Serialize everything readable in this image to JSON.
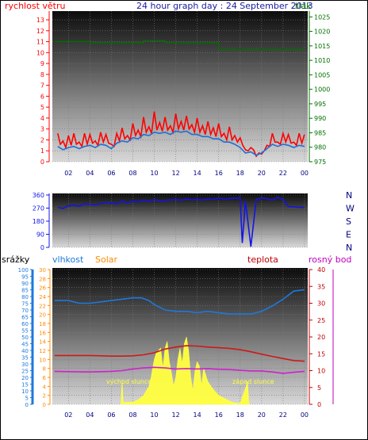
{
  "colors": {
    "wind": "#ff0000",
    "gust_line": "#1e6fd8",
    "pressure": "#007000",
    "direction": "#1414e6",
    "humidity": "#1e78dc",
    "temperature": "#d01818",
    "dewpoint": "#d020d0",
    "solar": "#ffff40",
    "rain_axis": "#1e78dc",
    "solar_axis": "#ff8c00",
    "temp_axis": "#c00000",
    "dew_axis": "#c000c0"
  },
  "chart_data": [
    {
      "type": "line",
      "title": "24 hour graph day : 24 September 2013",
      "left_label": "rychlost větru",
      "right_label": "tlak",
      "x_ticks": [
        "02",
        "04",
        "06",
        "08",
        "10",
        "12",
        "14",
        "16",
        "18",
        "20",
        "22",
        "00"
      ],
      "left_ticks": [
        "0",
        "1",
        "2",
        "3",
        "4",
        "5",
        "6",
        "7",
        "8",
        "9",
        "10",
        "11",
        "12",
        "13"
      ],
      "right_ticks": [
        "975",
        "980",
        "985",
        "990",
        "995",
        "1000",
        "1005",
        "1010",
        "1015",
        "1020",
        "1025"
      ],
      "ylim_left": [
        0,
        13.8
      ],
      "ylim_right": [
        975,
        1027
      ],
      "xlim": [
        0.5,
        24.3
      ],
      "series": [
        {
          "key": "wind_gust",
          "x": [
            1,
            1.5,
            2,
            2.5,
            3,
            3.5,
            4,
            4.5,
            5,
            5.5,
            6,
            6.5,
            7,
            7.5,
            8,
            8.5,
            9,
            9.5,
            10,
            10.5,
            11,
            11.5,
            12,
            12.5,
            13,
            13.5,
            14,
            14.5,
            15,
            15.5,
            16,
            16.5,
            17,
            17.5,
            18,
            18.5,
            19,
            19.5,
            20,
            20.5,
            21,
            21.5,
            22,
            22.5,
            23,
            23.5,
            24
          ],
          "y": [
            2.6,
            1.9,
            2.4,
            2.6,
            1.8,
            2.6,
            2.5,
            1.9,
            2.7,
            2.5,
            1.6,
            2.6,
            3.1,
            2.4,
            3.5,
            2.9,
            4.1,
            3.2,
            4.6,
            3.6,
            4.1,
            3.3,
            4.4,
            3.7,
            4.2,
            3.4,
            4.0,
            3.3,
            3.7,
            3.1,
            3.5,
            2.6,
            3.2,
            2.4,
            2.2,
            1.1,
            1.3,
            0.5,
            0.7,
            1.5,
            2.6,
            1.8,
            2.6,
            2.5,
            1.8,
            2.6,
            2.5
          ]
        },
        {
          "key": "wind_speed",
          "x": [
            1,
            1.5,
            2,
            2.5,
            3,
            3.5,
            4,
            4.5,
            5,
            5.5,
            6,
            6.5,
            7,
            7.5,
            8,
            8.5,
            9,
            9.5,
            10,
            10.5,
            11,
            11.5,
            12,
            12.5,
            13,
            13.5,
            14,
            14.5,
            15,
            15.5,
            16,
            16.5,
            17,
            17.5,
            18,
            18.5,
            19,
            19.5,
            20,
            20.5,
            21,
            21.5,
            22,
            22.5,
            23,
            23.5,
            24
          ],
          "y": [
            1.4,
            1.1,
            1.3,
            1.4,
            1.2,
            1.4,
            1.5,
            1.3,
            1.6,
            1.5,
            1.2,
            1.7,
            1.9,
            1.8,
            2.2,
            2.1,
            2.5,
            2.4,
            2.7,
            2.6,
            2.7,
            2.5,
            2.8,
            2.7,
            2.8,
            2.5,
            2.5,
            2.3,
            2.3,
            2.1,
            2.1,
            1.8,
            1.8,
            1.6,
            1.3,
            0.8,
            0.9,
            0.6,
            0.8,
            1.2,
            1.6,
            1.4,
            1.6,
            1.5,
            1.3,
            1.5,
            1.4
          ]
        },
        {
          "key": "pressure",
          "x": [
            0.7,
            4.0,
            4.0,
            9.0,
            9.0,
            11.0,
            11.0,
            16.0,
            16.0,
            24.0
          ],
          "y": [
            1016.5,
            1016.5,
            1016.0,
            1016.0,
            1016.8,
            1016.8,
            1016.0,
            1016.0,
            1013.7,
            1013.7
          ]
        }
      ]
    },
    {
      "type": "scatter",
      "right_labels": [
        "N",
        "W",
        "S",
        "E",
        "N"
      ],
      "left_ticks": [
        "0",
        "90",
        "180",
        "270",
        "360"
      ],
      "ylim": [
        0,
        360
      ],
      "x": [
        1,
        1.5,
        2,
        2.5,
        3,
        3.5,
        4,
        4.5,
        5,
        5.5,
        6,
        6.5,
        7,
        7.5,
        8,
        8.5,
        9,
        9.5,
        10,
        10.5,
        11,
        11.5,
        12,
        12.5,
        13,
        13.5,
        14,
        14.5,
        15,
        15.5,
        16,
        16.5,
        17,
        17.5,
        18,
        18.2,
        18.5,
        19,
        19.5,
        20,
        20.5,
        21,
        21.5,
        22,
        22.5,
        23,
        23.5,
        24
      ],
      "y": [
        275,
        268,
        285,
        290,
        282,
        300,
        295,
        292,
        300,
        310,
        305,
        300,
        318,
        305,
        320,
        312,
        325,
        318,
        328,
        320,
        322,
        326,
        330,
        324,
        332,
        328,
        330,
        326,
        334,
        330,
        338,
        332,
        335,
        340,
        338,
        30,
        320,
        5,
        330,
        340,
        335,
        325,
        345,
        330,
        280,
        278,
        276,
        275
      ]
    },
    {
      "type": "line",
      "labels": {
        "rain": "srážky",
        "humidity": "vlhkost",
        "solar": "Solar",
        "temperature": "teplota",
        "dewpoint": "rosný bod"
      },
      "x_ticks": [
        "02",
        "04",
        "06",
        "08",
        "10",
        "12",
        "14",
        "16",
        "18",
        "20",
        "22",
        "00"
      ],
      "rain_ticks": [
        "0",
        "5",
        "10",
        "15",
        "20",
        "25",
        "30",
        "35",
        "40",
        "45",
        "50",
        "55",
        "60",
        "65",
        "70",
        "75",
        "80",
        "85",
        "90",
        "95",
        "100"
      ],
      "solar_ticks": [
        "0",
        "2",
        "4",
        "6",
        "8",
        "10",
        "12",
        "14",
        "16",
        "18",
        "20",
        "22",
        "24",
        "26",
        "28",
        "30"
      ],
      "temp_ticks": [
        "0",
        "5",
        "10",
        "15",
        "20",
        "25",
        "30",
        "35",
        "40"
      ],
      "ylim_rain": [
        0,
        100
      ],
      "ylim_solar": [
        0,
        30
      ],
      "ylim_temp": [
        0,
        40
      ],
      "annotations": [
        "východ slunce",
        "západ slunce"
      ],
      "sunrise_hour": 7.0,
      "sunset_hour": 18.8,
      "series": [
        {
          "key": "humidity",
          "axis": "rain",
          "x": [
            0.7,
            1.5,
            2,
            3,
            4,
            5,
            6,
            7,
            8,
            8.8,
            9.5,
            10,
            11,
            12,
            13,
            14,
            15,
            16,
            17,
            18,
            19,
            20,
            21,
            22,
            23,
            24
          ],
          "y": [
            77,
            77,
            77,
            75,
            75,
            76,
            77,
            78,
            79,
            79,
            77,
            74,
            70,
            69,
            69,
            68,
            69,
            68,
            67,
            67,
            67,
            69,
            73,
            78,
            84,
            85
          ]
        },
        {
          "key": "temperature",
          "axis": "temp",
          "x": [
            0.7,
            2,
            4,
            6,
            7,
            8,
            9,
            10,
            11,
            12,
            13,
            14,
            15,
            16,
            17,
            18,
            19,
            20,
            21,
            22,
            23,
            24
          ],
          "y": [
            14.5,
            14.5,
            14.5,
            14.3,
            14.3,
            14.4,
            14.7,
            15.3,
            16.4,
            17.0,
            17.4,
            17.3,
            17.0,
            16.8,
            16.6,
            16.2,
            15.6,
            14.9,
            14.2,
            13.6,
            13.0,
            12.8
          ]
        },
        {
          "key": "dewpoint",
          "axis": "temp",
          "x": [
            0.7,
            2,
            4,
            6,
            7,
            8,
            9,
            10,
            11,
            12,
            13,
            14,
            15,
            16,
            17,
            18,
            19,
            20,
            21,
            22,
            23,
            24
          ],
          "y": [
            9.8,
            9.7,
            9.6,
            9.8,
            10.0,
            10.5,
            10.8,
            11.0,
            10.8,
            10.5,
            10.6,
            10.5,
            10.6,
            10.4,
            10.3,
            10.1,
            9.9,
            9.9,
            9.6,
            9.2,
            9.5,
            9.8
          ]
        },
        {
          "key": "solar",
          "axis": "solar",
          "x": [
            6.9,
            7.0,
            7.1,
            8.0,
            8.5,
            9.0,
            9.5,
            9.7,
            10.0,
            10.2,
            10.4,
            10.6,
            10.8,
            11.0,
            11.2,
            11.4,
            11.6,
            11.8,
            12.0,
            12.2,
            12.4,
            12.6,
            12.8,
            13.0,
            13.2,
            13.4,
            13.6,
            13.8,
            14.0,
            14.2,
            14.4,
            14.6,
            14.8,
            15.0,
            15.3,
            15.6,
            16.0,
            16.4,
            16.8,
            17.2,
            17.6,
            18.0,
            18.7,
            18.8,
            18.9
          ],
          "y": [
            0,
            5.5,
            0.4,
            0.5,
            1.0,
            2.0,
            4.0,
            6.0,
            10.0,
            11.5,
            12.0,
            12.5,
            8.0,
            12.5,
            14.0,
            9.5,
            7.0,
            4.0,
            6.0,
            10.0,
            12.5,
            9.0,
            13.5,
            15.0,
            12.0,
            6.0,
            3.0,
            7.5,
            9.5,
            8.5,
            4.0,
            8.0,
            6.5,
            5.0,
            4.0,
            3.0,
            2.0,
            1.5,
            1.0,
            0.5,
            0.3,
            0.2,
            5.0,
            0.4,
            0
          ]
        }
      ]
    }
  ]
}
